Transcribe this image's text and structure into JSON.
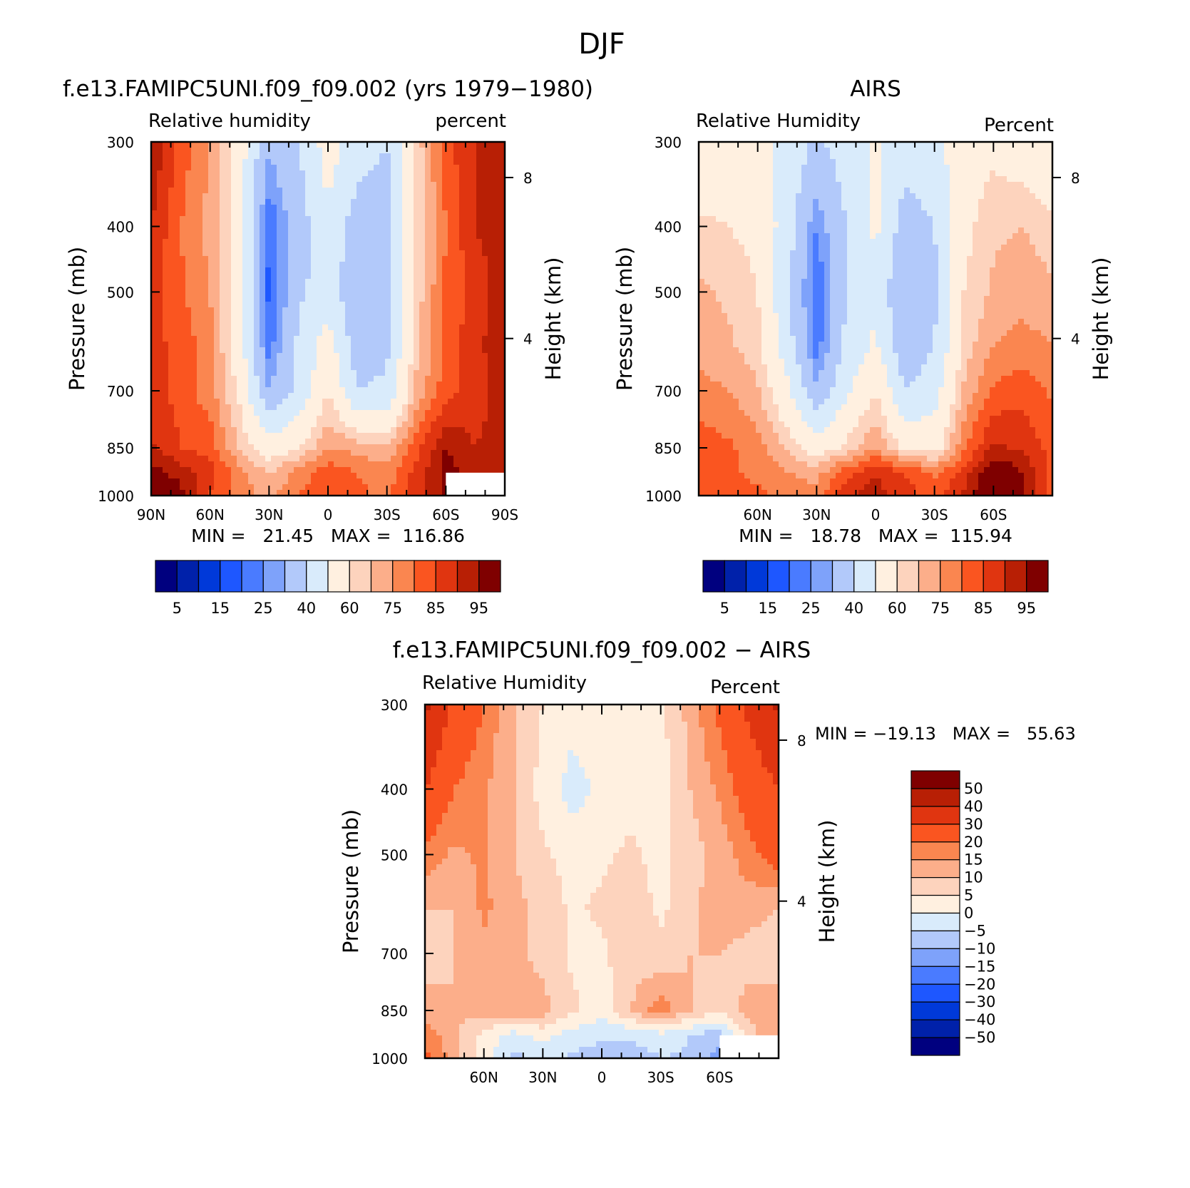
{
  "figure": {
    "title": "DJF"
  },
  "panels": [
    {
      "title": "f.e13.FAMIPC5UNI.f09_f09.002 (yrs 1979−1980)",
      "left_label": "Relative humidity",
      "right_label": "percent",
      "ylabel": "Pressure (mb)",
      "ylabel_right": "Height (km)",
      "stats": "MIN =   21.45   MAX =  116.86"
    },
    {
      "title": "AIRS",
      "left_label": "Relative Humidity",
      "right_label": "Percent",
      "ylabel": "Pressure (mb)",
      "ylabel_right": "Height (km)",
      "stats": "MIN =   18.78   MAX =  115.94"
    },
    {
      "title": "f.e13.FAMIPC5UNI.f09_f09.002 − AIRS",
      "left_label": "Relative Humidity",
      "right_label": "Percent",
      "ylabel": "Pressure (mb)",
      "ylabel_right": "Height (km)",
      "stats": "MIN = −19.13   MAX =   55.63"
    }
  ],
  "chart_data": [
    {
      "type": "heatmap",
      "title": "f.e13.FAMIPC5UNI.f09_f09.002 (yrs 1979−1980)",
      "variable": "Relative humidity",
      "units": "percent",
      "xlabel": "",
      "ylabel": "Pressure (mb)",
      "ylabel_right": "Height (km)",
      "x_ticks": [
        "90N",
        "60N",
        "30N",
        "0",
        "30S",
        "60S",
        "90S"
      ],
      "x_values": [
        90,
        60,
        30,
        0,
        -30,
        -60,
        -90
      ],
      "xlim": [
        90,
        -90
      ],
      "y_ticks": [
        300,
        400,
        500,
        700,
        850,
        1000
      ],
      "ylim": [
        1000,
        300
      ],
      "y_scale": "log",
      "y_right_ticks": [
        8,
        4
      ],
      "levels": [
        5,
        10,
        15,
        20,
        25,
        30,
        40,
        50,
        60,
        65,
        70,
        75,
        80,
        85,
        90,
        95
      ],
      "colorbar_labels": [
        "5",
        "15",
        "25",
        "40",
        "60",
        "75",
        "85",
        "95"
      ],
      "colors": [
        "#00007f",
        "#0021aa",
        "#0039d9",
        "#1e57ff",
        "#4a7bff",
        "#7ea2fa",
        "#b2c9fa",
        "#d9ebfb",
        "#fff0e0",
        "#fdd3bd",
        "#fcae8a",
        "#fa8650",
        "#fa5520",
        "#e03510",
        "#b81f05",
        "#7f0000"
      ],
      "stats": {
        "min": 21.45,
        "max": 116.86
      },
      "lat_grid": [
        90,
        75,
        60,
        45,
        30,
        15,
        0,
        -15,
        -30,
        -45,
        -60,
        -75,
        -90
      ],
      "pressure_grid": [
        300,
        400,
        500,
        600,
        700,
        850,
        925,
        1000
      ],
      "rh_grid": [
        [
          90,
          78,
          70,
          55,
          32,
          40,
          55,
          45,
          40,
          62,
          78,
          85,
          90
        ],
        [
          85,
          75,
          68,
          55,
          20,
          35,
          48,
          35,
          35,
          60,
          75,
          85,
          88
        ],
        [
          82,
          76,
          70,
          55,
          18,
          38,
          45,
          32,
          36,
          62,
          76,
          82,
          88
        ],
        [
          82,
          78,
          72,
          55,
          22,
          42,
          55,
          34,
          38,
          64,
          76,
          84,
          88
        ],
        [
          82,
          78,
          72,
          58,
          30,
          42,
          60,
          40,
          42,
          66,
          78,
          82,
          88
        ],
        [
          86,
          80,
          78,
          65,
          55,
          60,
          70,
          68,
          66,
          78,
          90,
          85,
          88
        ],
        [
          92,
          88,
          82,
          72,
          65,
          72,
          78,
          75,
          72,
          82,
          92,
          88,
          88
        ],
        [
          98,
          92,
          80,
          72,
          68,
          75,
          78,
          76,
          74,
          82,
          92,
          88,
          88
        ]
      ],
      "missing_region": {
        "lat": [
          -60,
          -90
        ],
        "pressure": [
          925,
          1000
        ]
      }
    },
    {
      "type": "heatmap",
      "title": "AIRS",
      "variable": "Relative Humidity",
      "units": "Percent",
      "xlabel": "",
      "ylabel": "Pressure (mb)",
      "ylabel_right": "Height (km)",
      "x_ticks": [
        "60N",
        "30N",
        "0",
        "30S",
        "60S"
      ],
      "x_values": [
        60,
        30,
        0,
        -30,
        -60
      ],
      "xlim": [
        90,
        -90
      ],
      "y_ticks": [
        300,
        400,
        500,
        700,
        850,
        1000
      ],
      "ylim": [
        1000,
        300
      ],
      "y_scale": "log",
      "y_right_ticks": [
        8,
        4
      ],
      "levels": [
        5,
        10,
        15,
        20,
        25,
        30,
        40,
        50,
        60,
        65,
        70,
        75,
        80,
        85,
        90,
        95
      ],
      "colorbar_labels": [
        "5",
        "15",
        "25",
        "40",
        "60",
        "75",
        "85",
        "95"
      ],
      "colors": [
        "#00007f",
        "#0021aa",
        "#0039d9",
        "#1e57ff",
        "#4a7bff",
        "#7ea2fa",
        "#b2c9fa",
        "#d9ebfb",
        "#fff0e0",
        "#fdd3bd",
        "#fcae8a",
        "#fa8650",
        "#fa5520",
        "#e03510",
        "#b81f05",
        "#7f0000"
      ],
      "stats": {
        "min": 18.78,
        "max": 115.94
      },
      "lat_grid": [
        90,
        75,
        60,
        45,
        30,
        15,
        0,
        -15,
        -30,
        -45,
        -60,
        -75,
        -90
      ],
      "pressure_grid": [
        300,
        400,
        500,
        600,
        700,
        850,
        925,
        1000
      ],
      "rh_grid": [
        [
          50,
          52,
          52,
          48,
          38,
          45,
          52,
          45,
          48,
          55,
          58,
          55,
          50
        ],
        [
          62,
          60,
          58,
          45,
          25,
          40,
          52,
          35,
          40,
          58,
          64,
          65,
          62
        ],
        [
          66,
          64,
          60,
          42,
          20,
          40,
          48,
          30,
          38,
          60,
          66,
          68,
          66
        ],
        [
          68,
          66,
          62,
          45,
          22,
          42,
          52,
          32,
          40,
          62,
          70,
          72,
          70
        ],
        [
          72,
          70,
          66,
          52,
          32,
          48,
          60,
          40,
          46,
          66,
          76,
          78,
          74
        ],
        [
          78,
          76,
          72,
          64,
          55,
          62,
          70,
          58,
          56,
          74,
          86,
          84,
          78
        ],
        [
          78,
          76,
          74,
          70,
          68,
          78,
          84,
          80,
          74,
          82,
          96,
          90,
          78
        ],
        [
          78,
          76,
          76,
          74,
          72,
          84,
          88,
          82,
          78,
          86,
          98,
          92,
          78
        ]
      ]
    },
    {
      "type": "heatmap",
      "title": "f.e13.FAMIPC5UNI.f09_f09.002 − AIRS",
      "variable": "Relative Humidity",
      "units": "Percent",
      "xlabel": "",
      "ylabel": "Pressure (mb)",
      "ylabel_right": "Height (km)",
      "x_ticks": [
        "60N",
        "30N",
        "0",
        "30S",
        "60S"
      ],
      "x_values": [
        60,
        30,
        0,
        -30,
        -60
      ],
      "xlim": [
        90,
        -90
      ],
      "y_ticks": [
        300,
        400,
        500,
        700,
        850,
        1000
      ],
      "ylim": [
        1000,
        300
      ],
      "y_scale": "log",
      "y_right_ticks": [
        8,
        4
      ],
      "levels": [
        -50,
        -40,
        -30,
        -20,
        -15,
        -10,
        -5,
        0,
        5,
        10,
        15,
        20,
        30,
        40,
        50
      ],
      "colorbar_labels": [
        "50",
        "40",
        "30",
        "20",
        "15",
        "10",
        "5",
        "0",
        "−5",
        "−10",
        "−15",
        "−20",
        "−30",
        "−40",
        "−50"
      ],
      "colors": [
        "#00007f",
        "#0021aa",
        "#0039d9",
        "#1e57ff",
        "#4a7bff",
        "#7ea2fa",
        "#b2c9fa",
        "#d9ebfb",
        "#fff0e0",
        "#fdd3bd",
        "#fcae8a",
        "#fa8650",
        "#fa5520",
        "#e03510",
        "#b81f05",
        "#7f0000"
      ],
      "stats": {
        "min": -19.13,
        "max": 55.63
      },
      "lat_grid": [
        90,
        75,
        60,
        45,
        30,
        15,
        0,
        -15,
        -30,
        -45,
        -60,
        -75,
        -90
      ],
      "pressure_grid": [
        300,
        400,
        500,
        600,
        700,
        850,
        925,
        1000
      ],
      "rh_grid": [
        [
          42,
          28,
          20,
          10,
          5,
          2,
          4,
          2,
          4,
          12,
          22,
          32,
          42
        ],
        [
          30,
          20,
          16,
          10,
          3,
          -2,
          1,
          3,
          2,
          10,
          16,
          24,
          30
        ],
        [
          18,
          14,
          16,
          10,
          6,
          3,
          4,
          6,
          3,
          8,
          12,
          18,
          24
        ],
        [
          10,
          10,
          16,
          12,
          8,
          4,
          6,
          8,
          4,
          8,
          14,
          12,
          10
        ],
        [
          8,
          10,
          14,
          12,
          8,
          4,
          4,
          8,
          6,
          10,
          10,
          8,
          8
        ],
        [
          12,
          10,
          12,
          14,
          12,
          6,
          2,
          10,
          18,
          10,
          6,
          12,
          12
        ],
        [
          18,
          12,
          3,
          -2,
          2,
          -2,
          -4,
          -4,
          -2,
          -5,
          -8,
          8,
          14
        ],
        [
          22,
          12,
          2,
          -6,
          -4,
          -6,
          -8,
          -8,
          -5,
          -6,
          -12,
          10,
          18
        ]
      ],
      "missing_region": {
        "lat": [
          -60,
          -90
        ],
        "pressure": [
          925,
          1000
        ]
      }
    }
  ]
}
